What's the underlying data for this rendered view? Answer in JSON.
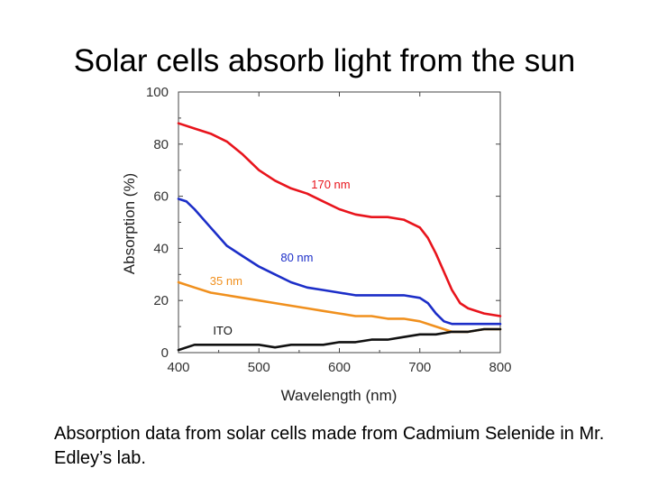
{
  "slide": {
    "title": "Solar cells absorb light from the sun",
    "caption": "Absorption data from solar cells made from Cadmium Selenide in Mr. Edley’s lab."
  },
  "chart_data": {
    "type": "line",
    "title": "",
    "xlabel": "Wavelength (nm)",
    "ylabel": "Absorption (%)",
    "xlim": [
      400,
      800
    ],
    "ylim": [
      0,
      100
    ],
    "xticks": [
      400,
      500,
      600,
      700,
      800
    ],
    "yticks": [
      0,
      20,
      40,
      60,
      80,
      100
    ],
    "grid": false,
    "series": [
      {
        "name": "170 nm",
        "color": "#e8141c",
        "x": [
          400,
          420,
          440,
          460,
          480,
          500,
          520,
          540,
          560,
          580,
          600,
          620,
          640,
          660,
          680,
          700,
          710,
          720,
          730,
          740,
          750,
          760,
          780,
          800
        ],
        "y": [
          88,
          86,
          84,
          81,
          76,
          70,
          66,
          63,
          61,
          58,
          55,
          53,
          52,
          52,
          51,
          48,
          44,
          38,
          31,
          24,
          19,
          17,
          15,
          14
        ]
      },
      {
        "name": "80 nm",
        "color": "#1c2ec8",
        "x": [
          400,
          410,
          420,
          440,
          460,
          480,
          500,
          520,
          540,
          560,
          580,
          600,
          620,
          640,
          660,
          680,
          700,
          710,
          720,
          730,
          740,
          760,
          780,
          800
        ],
        "y": [
          59,
          58,
          55,
          48,
          41,
          37,
          33,
          30,
          27,
          25,
          24,
          23,
          22,
          22,
          22,
          22,
          21,
          19,
          15,
          12,
          11,
          11,
          11,
          11
        ]
      },
      {
        "name": "35 nm",
        "color": "#f0901e",
        "x": [
          400,
          420,
          440,
          460,
          480,
          500,
          520,
          540,
          560,
          580,
          600,
          620,
          640,
          660,
          680,
          700,
          720,
          740,
          760,
          780,
          800
        ],
        "y": [
          27,
          25,
          23,
          22,
          21,
          20,
          19,
          18,
          17,
          16,
          15,
          14,
          14,
          13,
          13,
          12,
          10,
          8,
          8,
          9,
          9
        ]
      },
      {
        "name": "ITO",
        "color": "#111111",
        "x": [
          400,
          420,
          440,
          460,
          480,
          500,
          520,
          540,
          560,
          580,
          600,
          620,
          640,
          660,
          680,
          700,
          720,
          740,
          760,
          780,
          800
        ],
        "y": [
          1,
          3,
          3,
          3,
          3,
          3,
          2,
          3,
          3,
          3,
          4,
          4,
          5,
          5,
          6,
          7,
          7,
          8,
          8,
          9,
          9
        ]
      }
    ],
    "annotations": [
      {
        "text": "170 nm",
        "x": 565,
        "y": 63,
        "color": "#e8141c"
      },
      {
        "text": "80 nm",
        "x": 527,
        "y": 35,
        "color": "#1c2ec8"
      },
      {
        "text": "35 nm",
        "x": 439,
        "y": 26,
        "color": "#f0901e"
      },
      {
        "text": "ITO",
        "x": 443,
        "y": 7,
        "color": "#111111"
      }
    ]
  }
}
